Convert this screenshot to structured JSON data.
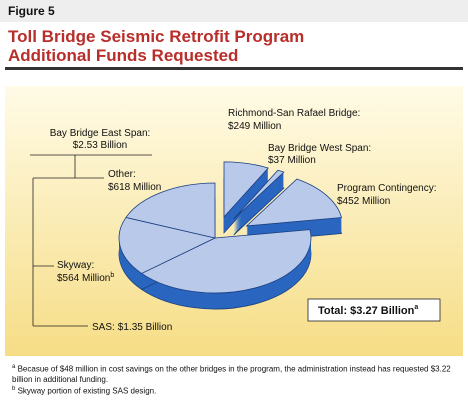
{
  "figure_label": "Figure 5",
  "chart_data": {
    "type": "pie",
    "title": "Toll Bridge Seismic Retrofit Program",
    "subtitle": "Additional Funds Requested",
    "categories": [
      "Richmond-San Rafael Bridge:",
      "Bay Bridge West Span:",
      "Program Contingency:",
      "SAS:",
      "Skyway:",
      "Other:"
    ],
    "values": [
      249,
      37,
      452,
      1350,
      564,
      618
    ],
    "value_labels": [
      "$249 Million",
      "$37 Million",
      "$452 Million",
      "$1.35 Billion",
      "$564 Million",
      "$618 Million"
    ],
    "exploded": [
      true,
      true,
      true,
      false,
      false,
      false
    ],
    "color": "#b9c9ea",
    "side_color": "#2a66bf",
    "group": {
      "name": "Bay Bridge East Span:",
      "value_label": "$2.53 Billion"
    },
    "total": "Total: $3.27 Billion",
    "notes": [
      {
        "mark": "a",
        "text": "Becasue of $48 million in cost savings on the other bridges in the program, the administration instead has requested $3.22 billion in additional funding."
      },
      {
        "mark": "b",
        "text": "Skyway portion of existing SAS design."
      }
    ]
  }
}
